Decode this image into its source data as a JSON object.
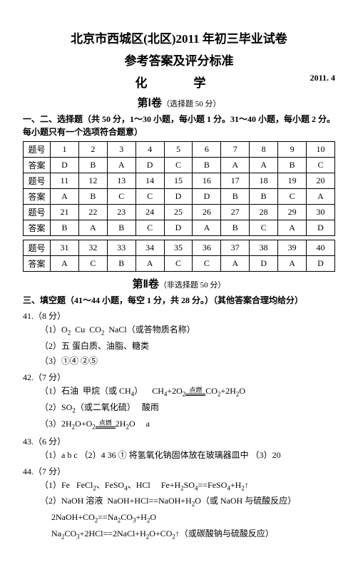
{
  "header": {
    "title1": "北京市西城区(北区)2011 年初三毕业试卷",
    "title2": "参考答案及评分标准",
    "subject": "化　学",
    "date": "2011. 4"
  },
  "section1": {
    "label": "第Ⅰ卷",
    "note": "（选择题  50 分）"
  },
  "instructions1": "一、二、选择题（共 50 分，1～30 小题，每小题 1 分。31～40 小题，每小题 2 分。每小题只有一个选项符合题意）",
  "tableLabels": {
    "qno": "题号",
    "ans": "答案"
  },
  "tables": [
    {
      "rows": [
        {
          "nums": [
            "1",
            "2",
            "3",
            "4",
            "5",
            "6",
            "7",
            "8",
            "9",
            "10"
          ],
          "ans": [
            "D",
            "B",
            "A",
            "D",
            "C",
            "B",
            "A",
            "A",
            "B",
            "C"
          ]
        },
        {
          "nums": [
            "11",
            "12",
            "13",
            "14",
            "15",
            "16",
            "17",
            "18",
            "19",
            "20"
          ],
          "ans": [
            "A",
            "B",
            "C",
            "C",
            "D",
            "D",
            "B",
            "B",
            "C",
            "A"
          ]
        },
        {
          "nums": [
            "21",
            "22",
            "23",
            "24",
            "25",
            "26",
            "27",
            "28",
            "29",
            "30"
          ],
          "ans": [
            "B",
            "A",
            "B",
            "C",
            "D",
            "A",
            "B",
            "C",
            "A",
            "D"
          ]
        }
      ]
    },
    {
      "rows": [
        {
          "nums": [
            "31",
            "32",
            "33",
            "34",
            "35",
            "36",
            "37",
            "38",
            "39",
            "40"
          ],
          "ans": [
            "A",
            "C",
            "B",
            "A",
            "C",
            "C",
            "A",
            "D",
            "A",
            "D"
          ]
        }
      ]
    }
  ],
  "section2": {
    "label": "第Ⅱ卷",
    "note": "（非选择题  50 分）"
  },
  "instructions2": "三、填空题（41～44 小题，每空 1 分，共 28 分。）（其他答案合理均给分）",
  "q41": {
    "no": "41.（8 分）",
    "p1_label": "（1）",
    "p1_items": "O₂   Cu   CO₂   NaCl（或答物质名称）",
    "p2_label": "（2）",
    "p2_text": "五   蛋白质、油脂、糖类",
    "p3_label": "（3）",
    "p3_text": "①④   ②⑤"
  },
  "q42": {
    "no": "42.（7 分）",
    "p1a": "（1）石油  甲烷（或 CH₄）",
    "p1b_left": "CH₄+2O₂",
    "p1b_cond": "点燃",
    "p1b_right": "CO₂+2H₂O",
    "p2": "（2）SO₂（或二氧化硫）   酸雨",
    "p3_left": "（3）2H₂O+O₂",
    "p3_cond": "点燃",
    "p3_right": "2H₂O     a"
  },
  "q43": {
    "no": "43.（6 分）",
    "line": "（1）a  b  c     （2）4  36   ①   将氢氧化钠固体放在玻璃器皿中     （3）20"
  },
  "q44": {
    "no": "44.（7 分）",
    "p1": "（1）Fe   FeCl₂、FeSO₄、HCl     Fe+H₂SO₄==FeSO₄+H₂↑",
    "p2a": "（2）NaOH 溶液  NaOH+HCl==NaOH+H₂O（或 NaOH 与硫酸反应）",
    "p2b": "2NaOH+CO₂==Na₂CO₃+H₂O",
    "p2c": "Na₂CO₃+2HCl==2NaCl+H₂O+CO₂↑（或碳酸钠与硫酸反应）"
  }
}
